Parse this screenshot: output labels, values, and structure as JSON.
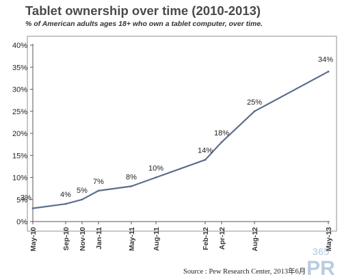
{
  "chart_data": {
    "type": "line",
    "title": "Tablet ownership over time (2010-2013)",
    "subtitle": "% of American adults ages 18+ who own a tablet computer, over time.",
    "x": [
      "May-10",
      "Sep-10",
      "Nov-10",
      "Jan-11",
      "May-11",
      "Aug-11",
      "Feb-12",
      "Apr-12",
      "Aug-12",
      "May-13"
    ],
    "series": [
      {
        "values": [
          3,
          4,
          5,
          7,
          8,
          10,
          14,
          18,
          25,
          34
        ]
      }
    ],
    "data_labels": [
      "3%",
      "4%",
      "5%",
      "7%",
      "8%",
      "10%",
      "14%",
      "18%",
      "25%",
      "34%"
    ],
    "y_ticks": [
      "0%",
      "5%",
      "10%",
      "15%",
      "20%",
      "25%",
      "30%",
      "35%",
      "40%"
    ],
    "ylim": [
      0,
      40
    ],
    "xlabel": "",
    "ylabel": "",
    "grid": false,
    "line_color": "#5a6e8c"
  },
  "source": "Source : Pew Research Center,   2013年6月",
  "watermark": {
    "top": "365",
    "bottom": "PR"
  }
}
